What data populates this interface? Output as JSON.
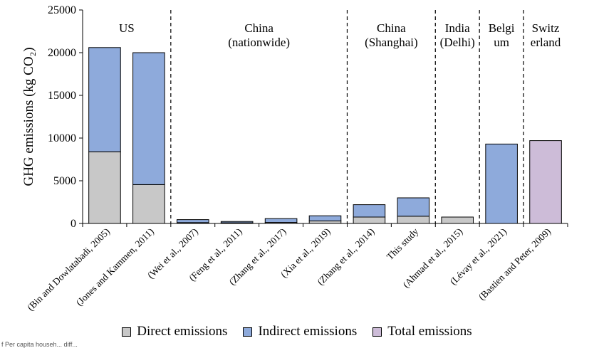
{
  "chart_data": {
    "type": "bar",
    "stacked": true,
    "ylabel": "GHG emissions (kg CO₂)",
    "ylim": [
      0,
      25000
    ],
    "yticks": [
      "0",
      "5000",
      "10000",
      "15000",
      "20000",
      "25000"
    ],
    "categories": [
      "(Bin and Dowlatabadi, 2005)",
      "(Jones and Kammen, 2011)",
      "(Wei et al., 2007)",
      "(Feng et al., 2011)",
      "(Zhang et al., 2017)",
      "(Xia et al., 2019)",
      "(Zhang et al., 2014)",
      "This study",
      "(Ahmad et al., 2015)",
      "(Lévay et al., 2021)",
      "(Bastien and Peter, 2009)"
    ],
    "series": [
      {
        "name": "Direct emissions",
        "color": "#c8c8c8",
        "values": [
          8400,
          4550,
          100,
          80,
          120,
          300,
          750,
          850,
          750,
          0,
          0
        ]
      },
      {
        "name": "Indirect emissions",
        "color": "#8eaadb",
        "values": [
          12200,
          15450,
          350,
          150,
          450,
          600,
          1450,
          2150,
          0,
          9300,
          0
        ]
      },
      {
        "name": "Total emissions",
        "color": "#cdbcd8",
        "values": [
          0,
          0,
          0,
          0,
          0,
          0,
          0,
          0,
          0,
          0,
          9700
        ]
      }
    ],
    "regions": [
      {
        "lines": [
          "US"
        ],
        "from": 0,
        "to": 1
      },
      {
        "lines": [
          "China",
          "(nationwide)"
        ],
        "from": 2,
        "to": 5
      },
      {
        "lines": [
          "China",
          "(Shanghai)"
        ],
        "from": 6,
        "to": 7
      },
      {
        "lines": [
          "India",
          "(Delhi)"
        ],
        "from": 8,
        "to": 8
      },
      {
        "lines": [
          "Belgi",
          "um"
        ],
        "from": 9,
        "to": 9
      },
      {
        "lines": [
          "Switz",
          "erland"
        ],
        "from": 10,
        "to": 10
      }
    ],
    "grid": false,
    "legend_position": "bottom"
  },
  "footnote": "f Per capita househ... diff..."
}
